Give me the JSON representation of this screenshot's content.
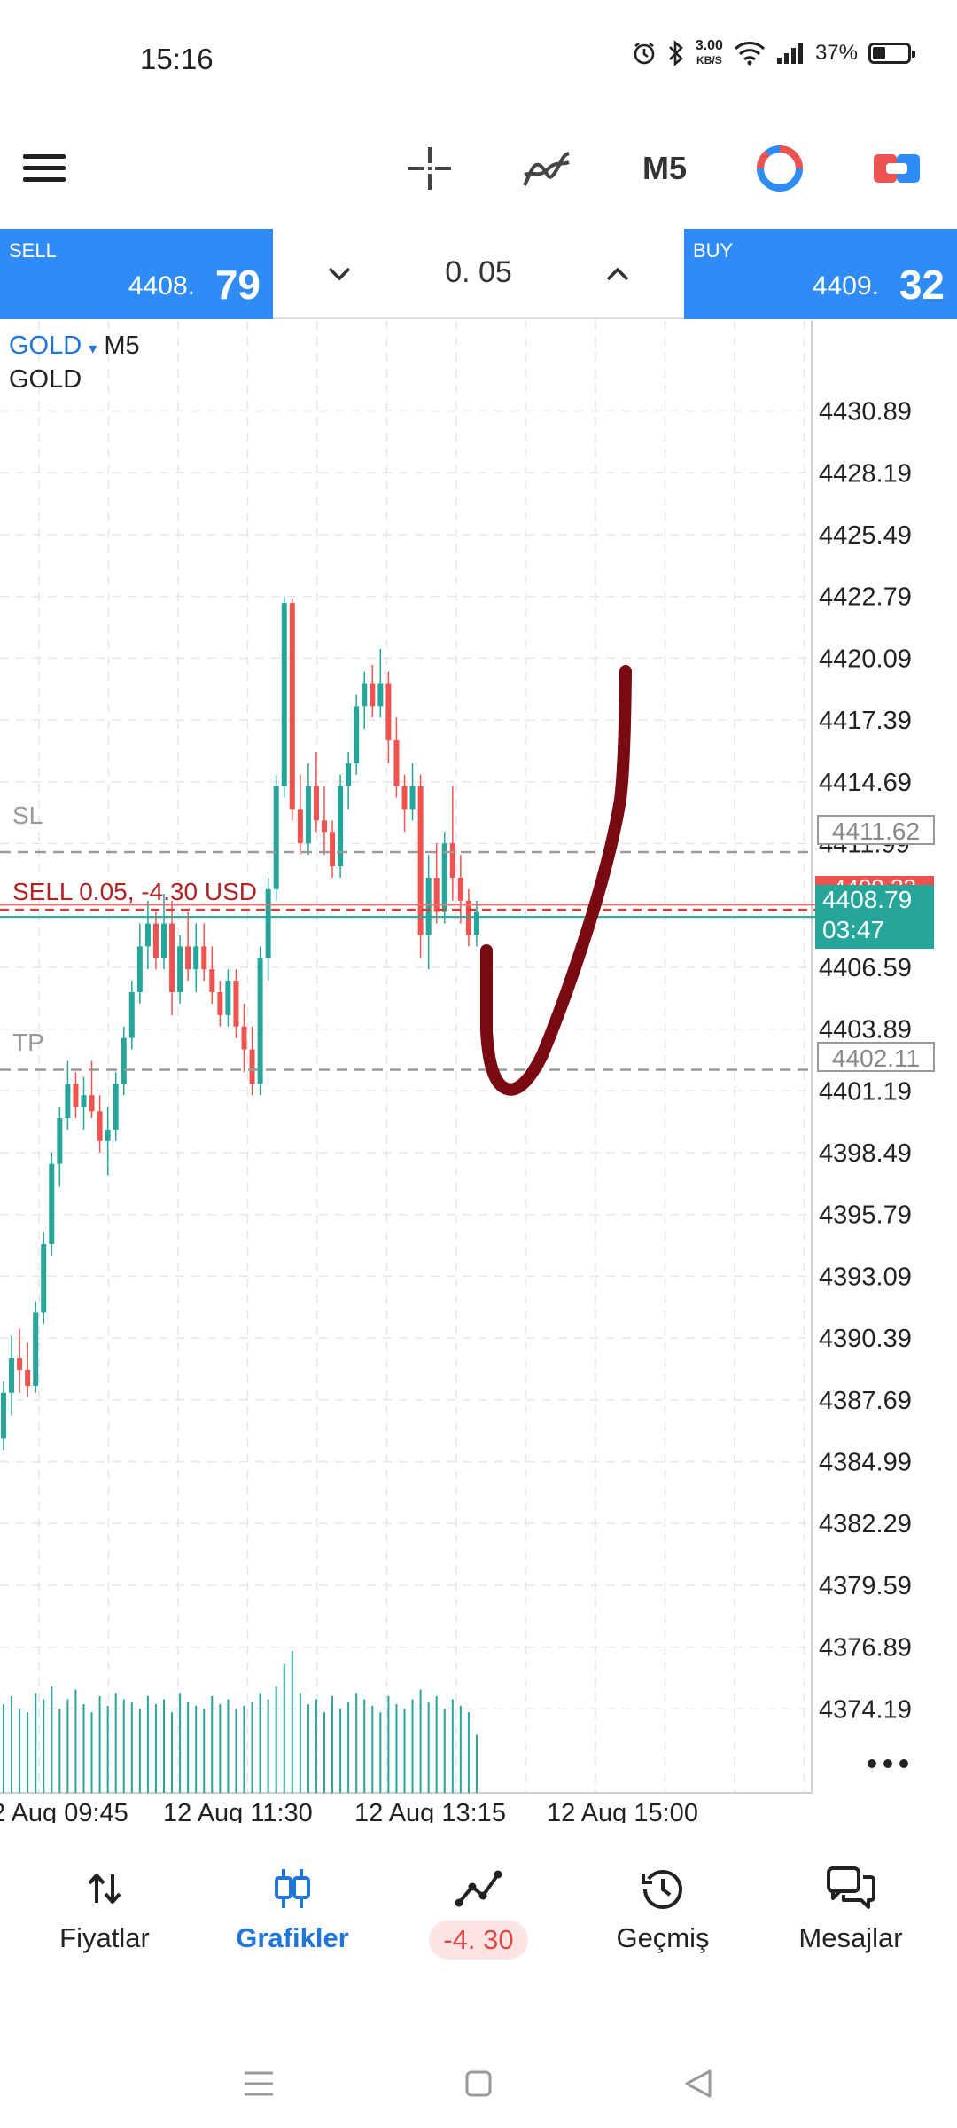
{
  "status": {
    "time": "15:16",
    "net_speed_value": "3.00",
    "net_speed_unit": "KB/S",
    "battery": "37%"
  },
  "toolbar": {
    "menu_icon": "hamburger-icon",
    "crosshair_icon": "crosshair-icon",
    "indicators_icon": "indicator-icon",
    "timeframe": "M5",
    "objects_icon": "clock-chart-icon",
    "trade_icon": "one-click-trade-icon"
  },
  "trade": {
    "sell_label": "SELL",
    "sell_price_prefix": "4408.",
    "sell_price_big": "79",
    "buy_label": "BUY",
    "buy_price_prefix": "4409.",
    "buy_price_big": "32",
    "volume": "0. 05"
  },
  "chart": {
    "symbol": "GOLD",
    "timeframe": "M5",
    "description": "GOLD",
    "sl_label": "SL",
    "tp_label": "TP",
    "position_label": "SELL 0.05, -4.30 USD",
    "sl_price": "4411.62",
    "tp_price": "4402.11",
    "ask_price": "4409.32",
    "bid_price": "4408.79",
    "countdown": "03:47",
    "more_icon": "more-icon",
    "colors": {
      "up": "#26a69a",
      "down": "#ef5350",
      "drawing": "#7a0a12",
      "accent": "#2f8cf6"
    }
  },
  "chart_data": {
    "type": "candlestick",
    "symbol": "GOLD",
    "timeframe": "M5",
    "y_ticks": [
      "4430.89",
      "4428.19",
      "4425.49",
      "4422.79",
      "4420.09",
      "4417.39",
      "4414.69",
      "4411.99",
      "4409.29",
      "4406.59",
      "4403.89",
      "4401.19",
      "4398.49",
      "4395.79",
      "4393.09",
      "4390.39",
      "4387.69",
      "4384.99",
      "4382.29",
      "4379.59",
      "4376.89",
      "4374.19"
    ],
    "x_ticks": [
      "2 Aug 09:45",
      "12 Aug 11:30",
      "12 Aug 13:15",
      "12 Aug 15:00"
    ],
    "ylim": [
      4373.0,
      4432.5
    ],
    "candles": [
      [
        4386.0,
        4388.5,
        4385.5,
        4388.0
      ],
      [
        4388.0,
        4390.5,
        4387.0,
        4389.5
      ],
      [
        4389.5,
        4390.8,
        4388.0,
        4389.0
      ],
      [
        4389.0,
        4390.2,
        4387.8,
        4388.3
      ],
      [
        4388.3,
        4392.0,
        4388.0,
        4391.5
      ],
      [
        4391.5,
        4395.0,
        4391.0,
        4394.5
      ],
      [
        4394.5,
        4398.5,
        4394.0,
        4398.0
      ],
      [
        4398.0,
        4400.5,
        4397.0,
        4400.0
      ],
      [
        4400.0,
        4402.5,
        4399.5,
        4401.5
      ],
      [
        4401.5,
        4402.0,
        4400.0,
        4400.5
      ],
      [
        4400.5,
        4401.8,
        4399.5,
        4401.0
      ],
      [
        4401.0,
        4402.5,
        4400.0,
        4400.3
      ],
      [
        4400.3,
        4401.0,
        4398.5,
        4399.0
      ],
      [
        4399.0,
        4400.5,
        4397.5,
        4399.5
      ],
      [
        4399.5,
        4402.0,
        4399.0,
        4401.5
      ],
      [
        4401.5,
        4404.0,
        4401.0,
        4403.5
      ],
      [
        4403.5,
        4406.0,
        4403.0,
        4405.5
      ],
      [
        4405.5,
        4408.5,
        4405.0,
        4407.5
      ],
      [
        4407.5,
        4409.5,
        4406.5,
        4408.5
      ],
      [
        4408.5,
        4409.0,
        4406.5,
        4407.0
      ],
      [
        4407.0,
        4409.8,
        4406.5,
        4408.5
      ],
      [
        4408.5,
        4409.5,
        4404.5,
        4405.5
      ],
      [
        4405.5,
        4408.0,
        4405.0,
        4407.5
      ],
      [
        4407.5,
        4409.0,
        4406.0,
        4406.5
      ],
      [
        4406.5,
        4408.5,
        4405.5,
        4407.5
      ],
      [
        4407.5,
        4408.5,
        4406.0,
        4406.5
      ],
      [
        4406.5,
        4407.5,
        4405.0,
        4405.5
      ],
      [
        4405.5,
        4406.0,
        4404.0,
        4404.5
      ],
      [
        4404.5,
        4406.5,
        4404.0,
        4406.0
      ],
      [
        4406.0,
        4406.5,
        4403.5,
        4404.0
      ],
      [
        4404.0,
        4405.0,
        4402.0,
        4403.0
      ],
      [
        4403.0,
        4404.0,
        4401.0,
        4401.5
      ],
      [
        4401.5,
        4407.5,
        4401.0,
        4407.0
      ],
      [
        4407.0,
        4410.5,
        4406.0,
        4410.0
      ],
      [
        4410.0,
        4415.0,
        4409.5,
        4414.5
      ],
      [
        4414.5,
        4422.8,
        4414.0,
        4422.5
      ],
      [
        4422.5,
        4422.7,
        4413.0,
        4413.5
      ],
      [
        4413.5,
        4415.0,
        4411.5,
        4412.0
      ],
      [
        4412.0,
        4415.5,
        4411.5,
        4414.5
      ],
      [
        4414.5,
        4416.0,
        4412.5,
        4413.0
      ],
      [
        4413.0,
        4414.5,
        4411.5,
        4412.5
      ],
      [
        4412.5,
        4413.0,
        4410.5,
        4411.0
      ],
      [
        4411.0,
        4415.0,
        4410.5,
        4414.5
      ],
      [
        4414.5,
        4416.0,
        4413.5,
        4415.5
      ],
      [
        4415.5,
        4418.5,
        4415.0,
        4418.0
      ],
      [
        4418.0,
        4419.5,
        4417.0,
        4419.0
      ],
      [
        4419.0,
        4419.8,
        4417.5,
        4418.0
      ],
      [
        4418.0,
        4420.5,
        4417.5,
        4419.0
      ],
      [
        4419.0,
        4419.5,
        4415.5,
        4416.5
      ],
      [
        4416.5,
        4417.5,
        4414.0,
        4414.5
      ],
      [
        4414.5,
        4415.0,
        4412.5,
        4413.5
      ],
      [
        4413.5,
        4415.5,
        4413.0,
        4414.5
      ],
      [
        4414.5,
        4415.0,
        4407.0,
        4408.0
      ],
      [
        4408.0,
        4411.5,
        4406.5,
        4410.5
      ],
      [
        4410.5,
        4412.0,
        4408.5,
        4409.0
      ],
      [
        4409.0,
        4412.5,
        4408.5,
        4412.0
      ],
      [
        4412.0,
        4414.5,
        4409.5,
        4410.5
      ],
      [
        4410.5,
        4411.5,
        4408.5,
        4409.5
      ],
      [
        4409.5,
        4410.0,
        4407.5,
        4408.0
      ],
      [
        4408.0,
        4409.5,
        4407.5,
        4409.0
      ]
    ],
    "volumes": [
      55,
      60,
      52,
      50,
      62,
      58,
      66,
      52,
      58,
      64,
      55,
      50,
      60,
      54,
      62,
      58,
      56,
      52,
      60,
      55,
      58,
      50,
      62,
      56,
      54,
      52,
      60,
      55,
      58,
      52,
      54,
      56,
      62,
      58,
      66,
      80,
      88,
      62,
      55,
      58,
      50,
      60,
      52,
      56,
      62,
      58,
      54,
      50,
      60,
      55,
      52,
      58,
      64,
      56,
      60,
      52,
      58,
      54,
      50,
      36
    ]
  },
  "nav": {
    "quotes": "Fiyatlar",
    "charts": "Grafikler",
    "trade_pl": "-4. 30",
    "history": "Geçmiş",
    "messages": "Mesajlar"
  }
}
